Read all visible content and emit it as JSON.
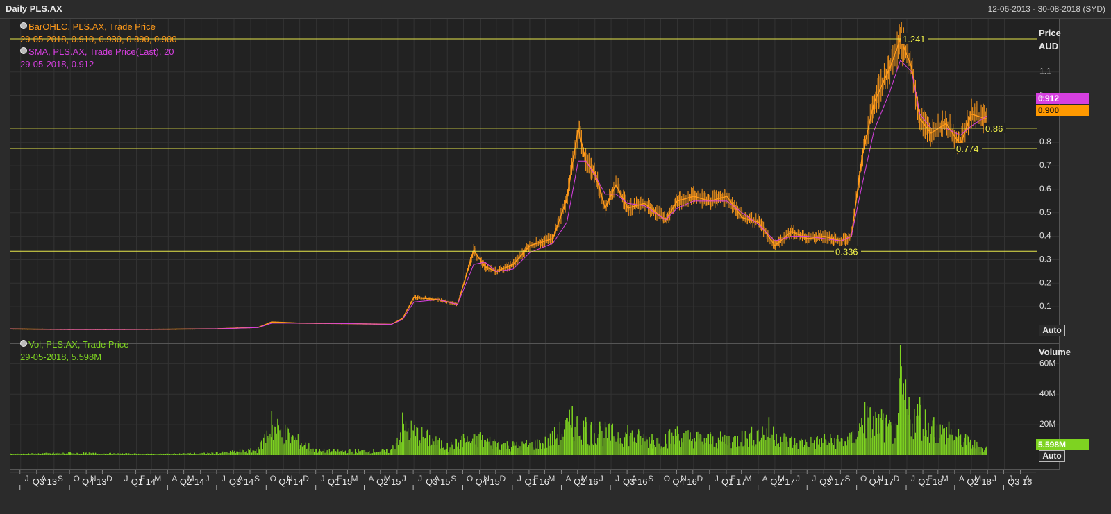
{
  "window": {
    "title": "Daily PLS.AX",
    "date_range": "12-06-2013 - 30-08-2018 (SYD)"
  },
  "price_panel": {
    "axis_title_1": "Price",
    "axis_title_2": "AUD",
    "auto_label": "Auto",
    "legend": {
      "ohlc_title": "BarOHLC, PLS.AX, Trade Price",
      "ohlc_values": "29-05-2018, 0.910, 0.930, 0.890, 0.900",
      "sma_title": "SMA, PLS.AX, Trade Price(Last),  20",
      "sma_values": "29-05-2018, 0.912"
    },
    "current_sma_tag": "0.912",
    "current_price_tag": "0.900"
  },
  "volume_panel": {
    "axis_title": "Volume",
    "auto_label": "Auto",
    "legend": {
      "title": "Vol, PLS.AX, Trade Price",
      "values": "29-05-2018, 5.598M"
    },
    "current_volume_tag": "5.598M"
  },
  "colors": {
    "price": "#ff9a1a",
    "sma": "#d63fe0",
    "volume": "#7ed321",
    "hline": "#e6e64a",
    "sma_tag_bg": "#d63fe0",
    "price_tag_bg": "#ff9900",
    "vol_tag_bg": "#7ed321"
  },
  "chart_data": [
    {
      "type": "ohlc",
      "title": "",
      "ylabel": "Price AUD",
      "ylim": [
        0,
        1.3
      ],
      "y_ticks": [
        0.1,
        0.2,
        0.3,
        0.4,
        0.5,
        0.6,
        0.7,
        0.8,
        1,
        1.1
      ],
      "y_tick_labels": [
        "0.1",
        "0.2",
        "0.3",
        "0.4",
        "0.5",
        "0.6",
        "0.7",
        "0.8",
        "1",
        "1.1"
      ],
      "x": [
        "2013-06-12",
        "2013-08-01",
        "2013-10-01",
        "2014-01-01",
        "2014-04-01",
        "2014-07-01",
        "2014-09-15",
        "2014-10-10",
        "2014-12-01",
        "2015-03-01",
        "2015-05-20",
        "2015-06-10",
        "2015-07-01",
        "2015-08-15",
        "2015-09-20",
        "2015-10-20",
        "2015-11-10",
        "2015-12-01",
        "2016-01-01",
        "2016-02-01",
        "2016-03-15",
        "2016-04-10",
        "2016-05-01",
        "2016-05-15",
        "2016-06-01",
        "2016-06-20",
        "2016-07-10",
        "2016-08-01",
        "2016-09-01",
        "2016-10-10",
        "2016-11-01",
        "2016-12-01",
        "2017-01-01",
        "2017-02-01",
        "2017-03-01",
        "2017-04-01",
        "2017-05-01",
        "2017-06-01",
        "2017-07-01",
        "2017-08-01",
        "2017-09-01",
        "2017-09-20",
        "2017-10-10",
        "2017-11-01",
        "2017-12-01",
        "2017-12-20",
        "2018-01-10",
        "2018-01-25",
        "2018-02-15",
        "2018-03-15",
        "2018-04-10",
        "2018-05-01",
        "2018-05-29"
      ],
      "series": [
        {
          "name": "BarOHLC, PLS.AX, Trade Price",
          "values": [
            0.005,
            0.004,
            0.003,
            0.003,
            0.004,
            0.006,
            0.012,
            0.035,
            0.03,
            0.028,
            0.025,
            0.05,
            0.14,
            0.13,
            0.11,
            0.34,
            0.27,
            0.25,
            0.28,
            0.36,
            0.39,
            0.56,
            0.86,
            0.72,
            0.67,
            0.52,
            0.62,
            0.52,
            0.54,
            0.47,
            0.55,
            0.57,
            0.55,
            0.57,
            0.48,
            0.46,
            0.36,
            0.42,
            0.39,
            0.4,
            0.38,
            0.4,
            0.74,
            0.97,
            1.12,
            1.24,
            1.12,
            0.9,
            0.84,
            0.88,
            0.79,
            0.92,
            0.9
          ]
        },
        {
          "name": "SMA, PLS.AX, Trade Price(Last),  20",
          "values": [
            0.005,
            0.004,
            0.003,
            0.003,
            0.004,
            0.006,
            0.011,
            0.03,
            0.03,
            0.028,
            0.025,
            0.045,
            0.12,
            0.13,
            0.11,
            0.28,
            0.29,
            0.25,
            0.26,
            0.33,
            0.37,
            0.46,
            0.72,
            0.72,
            0.66,
            0.58,
            0.58,
            0.54,
            0.53,
            0.47,
            0.52,
            0.55,
            0.55,
            0.55,
            0.5,
            0.45,
            0.38,
            0.4,
            0.4,
            0.39,
            0.38,
            0.4,
            0.62,
            0.85,
            1.02,
            1.15,
            1.1,
            0.92,
            0.86,
            0.86,
            0.83,
            0.87,
            0.912
          ]
        }
      ],
      "horizontal_levels": [
        1.241,
        0.86,
        0.774,
        0.336
      ],
      "horizontal_level_labels": [
        "1.241",
        "0.86",
        "0.774",
        "0.336"
      ]
    },
    {
      "type": "bar",
      "title": "",
      "ylabel": "Volume",
      "ylim": [
        0,
        72
      ],
      "y_ticks": [
        20,
        40,
        60
      ],
      "y_tick_labels": [
        "20M",
        "40M",
        "60M"
      ],
      "x": [
        "2013-06-12",
        "2013-10-01",
        "2014-03-01",
        "2014-07-01",
        "2014-09-15",
        "2014-10-10",
        "2015-01-01",
        "2015-05-20",
        "2015-06-10",
        "2015-09-01",
        "2015-10-01",
        "2015-11-01",
        "2016-01-01",
        "2016-03-01",
        "2016-04-20",
        "2016-05-15",
        "2016-06-10",
        "2016-08-01",
        "2016-09-15",
        "2016-11-01",
        "2017-01-01",
        "2017-03-01",
        "2017-04-20",
        "2017-06-01",
        "2017-08-01",
        "2017-09-20",
        "2017-10-15",
        "2017-11-15",
        "2017-12-15",
        "2017-12-20",
        "2018-01-05",
        "2018-01-25",
        "2018-02-20",
        "2018-03-20",
        "2018-04-20",
        "2018-05-29"
      ],
      "values": [
        1,
        2,
        1,
        2,
        5,
        29,
        4,
        4,
        28,
        8,
        14,
        15,
        9,
        12,
        32,
        25,
        22,
        20,
        14,
        19,
        15,
        16,
        25,
        12,
        14,
        15,
        35,
        30,
        20,
        72,
        38,
        38,
        25,
        22,
        14,
        5.598
      ],
      "unit": "M"
    }
  ],
  "x_axis": {
    "months": [
      "J",
      "A",
      "S",
      "O",
      "N",
      "D",
      "J",
      "F",
      "M",
      "A",
      "M",
      "J",
      "J",
      "A",
      "S",
      "O",
      "N",
      "D",
      "J",
      "F",
      "M",
      "A",
      "M",
      "J",
      "J",
      "A",
      "S",
      "O",
      "N",
      "D",
      "J",
      "F",
      "M",
      "A",
      "M",
      "J",
      "J",
      "A",
      "S",
      "O",
      "N",
      "D",
      "J",
      "F",
      "M",
      "A",
      "M",
      "J",
      "J",
      "A",
      "S",
      "O",
      "N",
      "D",
      "J",
      "F",
      "M",
      "A",
      "M",
      "J",
      "J",
      "A"
    ],
    "quarters": [
      "Q3 13",
      "Q4 13",
      "Q1 14",
      "Q2 14",
      "Q3 14",
      "Q4 14",
      "Q1 15",
      "Q2 15",
      "Q3 15",
      "Q4 15",
      "Q1 16",
      "Q2 16",
      "Q3 16",
      "Q4 16",
      "Q1 17",
      "Q2 17",
      "Q3 17",
      "Q4 17",
      "Q1 18",
      "Q2 18",
      "Q3 18"
    ]
  }
}
